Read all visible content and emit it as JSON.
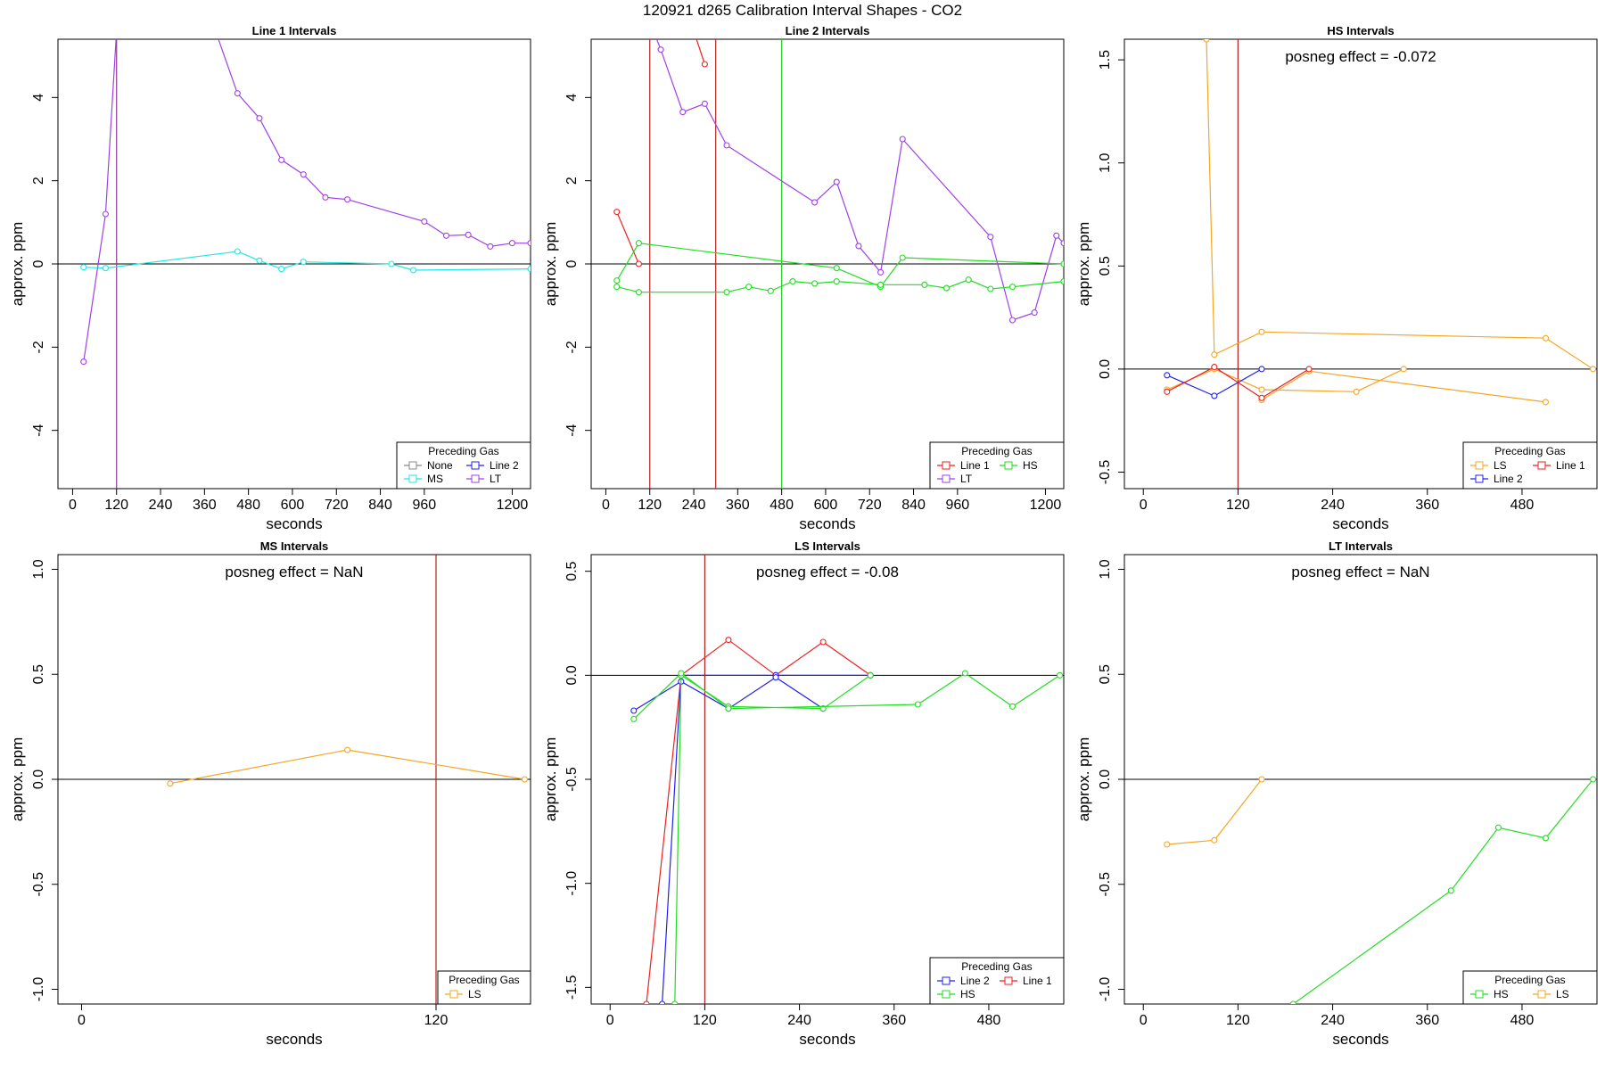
{
  "figure_title": "120921  d265   Calibration Interval Shapes - CO2",
  "colors": {
    "None": "#888888",
    "MS": "#22e5e5",
    "Line 2": "#2020ee",
    "LT": "#a040e8",
    "Line 1": "#ee2020",
    "HS": "#22dd22",
    "LS": "#f5a623",
    "zero": "#000000",
    "vred": "#b22222",
    "vgreen": "#22cc22",
    "vpurple": "#8b3a8b"
  },
  "chart_data": [
    {
      "type": "line",
      "title": "Line 1 Intervals",
      "xlabel": "seconds",
      "ylabel": "approx. ppm",
      "xlim": [
        -40,
        1250
      ],
      "ylim": [
        -5.4,
        5.4
      ],
      "xticks": [
        0,
        120,
        240,
        360,
        480,
        600,
        720,
        840,
        960,
        1200
      ],
      "yticks": [
        -4,
        -2,
        0,
        2,
        4
      ],
      "annotation": "",
      "vlines": [
        {
          "x": 120,
          "color": "vpurple"
        }
      ],
      "legend": {
        "title": "Preceding Gas",
        "position": "bottom-right",
        "cols": 2,
        "entries": [
          "None",
          "Line 2",
          "MS",
          "LT"
        ]
      },
      "series": [
        {
          "name": "LT",
          "x": [
            30,
            90,
            120
          ],
          "y": [
            -2.35,
            1.2,
            5.6
          ]
        },
        {
          "name": "LT",
          "x": [
            390,
            450,
            510,
            570,
            630,
            690,
            750,
            960,
            1020,
            1080,
            1140,
            1200,
            1250
          ],
          "y": [
            5.6,
            4.1,
            3.5,
            2.5,
            2.15,
            1.6,
            1.55,
            1.02,
            0.68,
            0.7,
            0.42,
            0.5,
            0.5
          ]
        },
        {
          "name": "MS",
          "x": [
            30,
            90,
            450,
            510,
            570,
            630,
            870,
            930,
            1250
          ],
          "y": [
            -0.08,
            -0.1,
            0.3,
            0.08,
            -0.12,
            0.05,
            0.0,
            -0.15,
            -0.12
          ]
        }
      ]
    },
    {
      "type": "line",
      "title": "Line 2 Intervals",
      "xlabel": "seconds",
      "ylabel": "approx. ppm",
      "xlim": [
        -40,
        1250
      ],
      "ylim": [
        -5.4,
        5.4
      ],
      "xticks": [
        0,
        120,
        240,
        360,
        480,
        600,
        720,
        840,
        960,
        1200
      ],
      "yticks": [
        -4,
        -2,
        0,
        2,
        4
      ],
      "annotation": "",
      "vlines": [
        {
          "x": 120,
          "color": "vred"
        },
        {
          "x": 300,
          "color": "vred"
        },
        {
          "x": 480,
          "color": "vgreen"
        }
      ],
      "legend": {
        "title": "Preceding Gas",
        "position": "bottom-right",
        "cols": 2,
        "entries": [
          "Line 1",
          "HS",
          "LT"
        ]
      },
      "series": [
        {
          "name": "Line 1",
          "x": [
            30,
            90
          ],
          "y": [
            1.25,
            0.0
          ]
        },
        {
          "name": "Line 1",
          "x": [
            240,
            270
          ],
          "y": [
            5.6,
            4.8
          ]
        },
        {
          "name": "LT",
          "x": [
            130,
            150,
            210,
            270,
            330,
            570,
            630,
            690,
            750,
            810,
            1050,
            1110,
            1170,
            1230,
            1250
          ],
          "y": [
            5.6,
            5.15,
            3.65,
            3.85,
            2.85,
            1.48,
            1.97,
            0.43,
            -0.2,
            3.0,
            0.65,
            -1.35,
            -1.17,
            0.68,
            0.5
          ]
        },
        {
          "name": "HS",
          "x": [
            30,
            90,
            630,
            750,
            810,
            1250
          ],
          "y": [
            -0.4,
            0.5,
            -0.1,
            -0.55,
            0.15,
            0.0
          ]
        },
        {
          "name": "HS",
          "x": [
            30,
            90,
            330,
            390,
            450,
            510,
            570,
            630,
            750,
            870,
            930,
            990,
            1050,
            1110,
            1250
          ],
          "y": [
            -0.55,
            -0.68,
            -0.68,
            -0.55,
            -0.65,
            -0.42,
            -0.47,
            -0.42,
            -0.5,
            -0.5,
            -0.58,
            -0.38,
            -0.6,
            -0.55,
            -0.42
          ]
        }
      ]
    },
    {
      "type": "line",
      "title": "HS Intervals",
      "xlabel": "seconds",
      "ylabel": "approx. ppm",
      "xlim": [
        -24,
        575
      ],
      "ylim": [
        -0.58,
        1.6
      ],
      "xticks": [
        0,
        120,
        240,
        360,
        480
      ],
      "yticks": [
        -0.5,
        0.0,
        0.5,
        1.0,
        1.5
      ],
      "annotation": "posneg effect = -0.072",
      "vlines": [
        {
          "x": 120,
          "color": "vred"
        }
      ],
      "legend": {
        "title": "Preceding Gas",
        "position": "bottom-right",
        "cols": 2,
        "entries": [
          "LS",
          "Line 1",
          "Line 2"
        ]
      },
      "series": [
        {
          "name": "LS",
          "x": [
            80,
            90,
            150,
            510,
            570
          ],
          "y": [
            1.6,
            0.07,
            0.18,
            0.15,
            0.0
          ]
        },
        {
          "name": "LS",
          "x": [
            30,
            90,
            150,
            270,
            330
          ],
          "y": [
            -0.1,
            0.0,
            -0.1,
            -0.11,
            0.0
          ]
        },
        {
          "name": "LS",
          "x": [
            150,
            210,
            510
          ],
          "y": [
            -0.15,
            -0.01,
            -0.16
          ]
        },
        {
          "name": "Line 2",
          "x": [
            30,
            90,
            150
          ],
          "y": [
            -0.03,
            -0.13,
            0.0
          ]
        },
        {
          "name": "Line 1",
          "x": [
            30,
            90,
            150,
            210
          ],
          "y": [
            -0.11,
            0.01,
            -0.14,
            0.0
          ]
        }
      ]
    },
    {
      "type": "line",
      "title": "MS Intervals",
      "xlabel": "seconds",
      "ylabel": "approx. ppm",
      "xlim": [
        -8,
        152
      ],
      "ylim": [
        -1.07,
        1.07
      ],
      "xticks": [
        0,
        120
      ],
      "yticks": [
        -1.0,
        -0.5,
        0.0,
        0.5,
        1.0
      ],
      "annotation": "posneg effect = NaN",
      "vlines": [
        {
          "x": 120,
          "color": "vred"
        }
      ],
      "legend": {
        "title": "Preceding Gas",
        "position": "bottom-right",
        "cols": 1,
        "entries": [
          "LS"
        ]
      },
      "series": [
        {
          "name": "LS",
          "x": [
            30,
            90,
            150
          ],
          "y": [
            -0.02,
            0.14,
            0.0
          ]
        }
      ]
    },
    {
      "type": "line",
      "title": "LS Intervals",
      "xlabel": "seconds",
      "ylabel": "approx. ppm",
      "xlim": [
        -24,
        575
      ],
      "ylim": [
        -1.58,
        0.58
      ],
      "xticks": [
        0,
        120,
        240,
        360,
        480
      ],
      "yticks": [
        -1.5,
        -1.0,
        -0.5,
        0.0,
        0.5
      ],
      "annotation": "posneg effect = -0.08",
      "vlines": [
        {
          "x": 120,
          "color": "vred"
        }
      ],
      "legend": {
        "title": "Preceding Gas",
        "position": "bottom-right",
        "cols": 2,
        "entries": [
          "Line 2",
          "Line 1",
          "HS"
        ]
      },
      "series": [
        {
          "name": "Line 1",
          "x": [
            46,
            90,
            150,
            210,
            270,
            330
          ],
          "y": [
            -1.58,
            0.0,
            0.17,
            0.0,
            0.16,
            0.0
          ]
        },
        {
          "name": "Line 2",
          "x": [
            66,
            90,
            210,
            330
          ],
          "y": [
            -1.58,
            0.0,
            0.0,
            0.0
          ]
        },
        {
          "name": "Line 2",
          "x": [
            30,
            90,
            150,
            210,
            270
          ],
          "y": [
            -0.17,
            -0.03,
            -0.16,
            -0.01,
            -0.16
          ]
        },
        {
          "name": "HS",
          "x": [
            82,
            90,
            150,
            270,
            330
          ],
          "y": [
            -1.58,
            0.0,
            -0.15,
            -0.16,
            0.0
          ]
        },
        {
          "name": "HS",
          "x": [
            30,
            90,
            150,
            390,
            450,
            510,
            570
          ],
          "y": [
            -0.21,
            0.01,
            -0.16,
            -0.14,
            0.01,
            -0.15,
            0.0
          ]
        }
      ]
    },
    {
      "type": "line",
      "title": "LT Intervals",
      "xlabel": "seconds",
      "ylabel": "approx. ppm",
      "xlim": [
        -24,
        575
      ],
      "ylim": [
        -1.07,
        1.07
      ],
      "xticks": [
        0,
        120,
        240,
        360,
        480
      ],
      "yticks": [
        -1.0,
        -0.5,
        0.0,
        0.5,
        1.0
      ],
      "annotation": "posneg effect = NaN",
      "vlines": [],
      "legend": {
        "title": "Preceding Gas",
        "position": "bottom-right",
        "cols": 2,
        "entries": [
          "HS",
          "LS"
        ]
      },
      "series": [
        {
          "name": "LS",
          "x": [
            30,
            90,
            150
          ],
          "y": [
            -0.31,
            -0.29,
            0.0
          ]
        },
        {
          "name": "HS",
          "x": [
            190,
            390,
            450,
            510,
            570
          ],
          "y": [
            -1.07,
            -0.53,
            -0.23,
            -0.28,
            0.0
          ]
        }
      ]
    }
  ]
}
